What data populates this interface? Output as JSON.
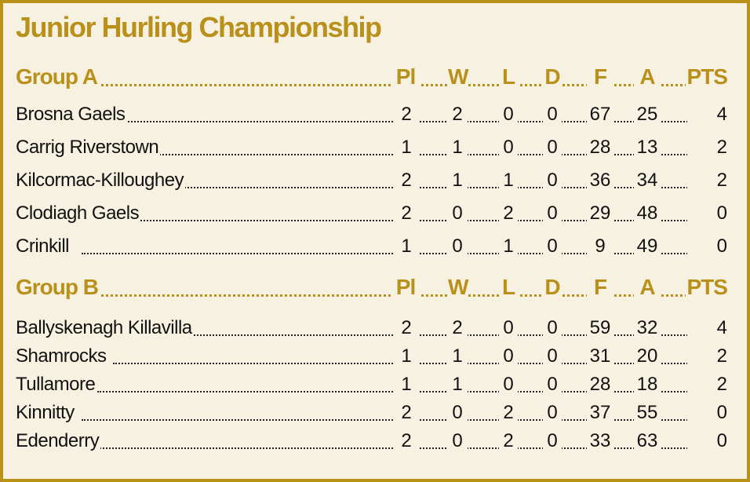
{
  "title": "Junior Hurling Championship",
  "columns": [
    "Pl",
    "W",
    "L",
    "D",
    "F",
    "A",
    "PTS"
  ],
  "groups": [
    {
      "name": "Group A",
      "rows": [
        {
          "team": "Brosna Gaels",
          "pl": "2",
          "w": "2",
          "l": "0",
          "d": "0",
          "f": "67",
          "a": "25",
          "pts": "4"
        },
        {
          "team": "Carrig Riverstown",
          "pl": "1",
          "w": "1",
          "l": "0",
          "d": "0",
          "f": "28",
          "a": "13",
          "pts": "2"
        },
        {
          "team": "Kilcormac-Killoughey",
          "pl": "2",
          "w": "1",
          "l": "1",
          "d": "0",
          "f": "36",
          "a": "34",
          "pts": "2"
        },
        {
          "team": "Clodiagh Gaels",
          "pl": "2",
          "w": "0",
          "l": "2",
          "d": "0",
          "f": "29",
          "a": "48",
          "pts": "0"
        },
        {
          "team": "Crinkill",
          "pl": "1",
          "w": "0",
          "l": "1",
          "d": "0",
          "f": "9",
          "a": "49",
          "pts": "0"
        }
      ]
    },
    {
      "name": "Group B",
      "rows": [
        {
          "team": "Ballyskenagh Killavilla",
          "pl": "2",
          "w": "2",
          "l": "0",
          "d": "0",
          "f": "59",
          "a": "32",
          "pts": "4"
        },
        {
          "team": "Shamrocks",
          "pl": "1",
          "w": "1",
          "l": "0",
          "d": "0",
          "f": "31",
          "a": "20",
          "pts": "2"
        },
        {
          "team": "Tullamore",
          "pl": "1",
          "w": "1",
          "l": "0",
          "d": "0",
          "f": "28",
          "a": "18",
          "pts": "2"
        },
        {
          "team": "Kinnitty",
          "pl": "2",
          "w": "0",
          "l": "2",
          "d": "0",
          "f": "37",
          "a": "55",
          "pts": "0"
        },
        {
          "team": "Edenderry",
          "pl": "2",
          "w": "0",
          "l": "2",
          "d": "0",
          "f": "33",
          "a": "63",
          "pts": "0"
        }
      ]
    }
  ],
  "colors": {
    "accent": "#b8901a",
    "background": "#f7f1e2",
    "text": "#111111"
  }
}
